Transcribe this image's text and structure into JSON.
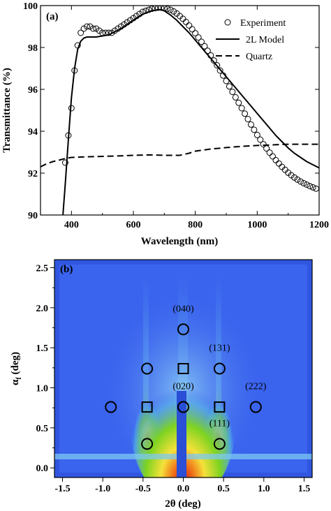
{
  "colors": {
    "line": "#000000",
    "map_bg": "#2a4fd6",
    "map_low": "#3a63ee",
    "map_mid": "#4fa8e8",
    "map_green": "#7ed321",
    "map_yellow": "#f5e13a",
    "map_orange": "#f07a1a",
    "map_red": "#d01818",
    "marker": "#000000"
  },
  "chart_data": [
    {
      "type": "line",
      "panel_label": "(a)",
      "xlabel": "Wavelength (nm)",
      "ylabel": "Transmittance (%)",
      "xlim": [
        300,
        1200
      ],
      "ylim": [
        90,
        100
      ],
      "x_ticks": [
        400,
        600,
        800,
        1000,
        1200
      ],
      "x_tick_labels": [
        "400",
        "600",
        "800",
        "1000",
        "1200"
      ],
      "y_ticks": [
        90,
        92,
        94,
        96,
        98,
        100
      ],
      "y_tick_labels": [
        "90",
        "92",
        "94",
        "96",
        "98",
        "100"
      ],
      "grid": false,
      "legend_position": "top-right",
      "series": [
        {
          "name": "Experiment",
          "style": "open-circles",
          "x": [
            380,
            390,
            400,
            410,
            420,
            430,
            440,
            450,
            460,
            470,
            480,
            490,
            500,
            510,
            520,
            530,
            540,
            550,
            560,
            570,
            580,
            590,
            600,
            610,
            620,
            630,
            640,
            650,
            660,
            670,
            680,
            690,
            700,
            710,
            720,
            730,
            740,
            750,
            760,
            770,
            780,
            790,
            800,
            810,
            820,
            830,
            840,
            850,
            860,
            870,
            880,
            890,
            900,
            910,
            920,
            930,
            940,
            950,
            960,
            970,
            980,
            990,
            1000,
            1010,
            1020,
            1030,
            1040,
            1050,
            1060,
            1070,
            1080,
            1090,
            1100,
            1110,
            1120,
            1130,
            1140,
            1150,
            1160,
            1170,
            1180,
            1190
          ],
          "y": [
            92.5,
            93.8,
            95.1,
            96.9,
            98.1,
            98.7,
            98.9,
            99.0,
            99.0,
            98.9,
            98.9,
            98.8,
            98.7,
            98.7,
            98.7,
            98.7,
            98.8,
            98.9,
            99.0,
            99.1,
            99.2,
            99.3,
            99.4,
            99.5,
            99.6,
            99.7,
            99.75,
            99.8,
            99.85,
            99.88,
            99.9,
            99.9,
            99.88,
            99.85,
            99.8,
            99.72,
            99.62,
            99.5,
            99.37,
            99.22,
            99.05,
            98.87,
            98.68,
            98.48,
            98.27,
            98.06,
            97.84,
            97.62,
            97.38,
            97.15,
            96.9,
            96.66,
            96.4,
            96.14,
            95.88,
            95.62,
            95.36,
            95.1,
            94.84,
            94.58,
            94.32,
            94.07,
            93.82,
            93.6,
            93.38,
            93.18,
            92.98,
            92.8,
            92.62,
            92.46,
            92.3,
            92.16,
            92.02,
            91.9,
            91.79,
            91.69,
            91.6,
            91.52,
            91.45,
            91.38,
            91.32,
            91.26
          ]
        },
        {
          "name": "2L Model",
          "style": "solid",
          "x": [
            370,
            380,
            390,
            400,
            410,
            420,
            430,
            440,
            450,
            460,
            480,
            500,
            520,
            540,
            560,
            580,
            600,
            620,
            640,
            660,
            680,
            690,
            700,
            720,
            740,
            760,
            780,
            800,
            820,
            840,
            860,
            880,
            900,
            920,
            940,
            960,
            980,
            1000,
            1020,
            1040,
            1060,
            1080,
            1100,
            1120,
            1140,
            1160,
            1180,
            1200
          ],
          "y": [
            89.5,
            91.5,
            93.6,
            95.6,
            97.0,
            97.9,
            98.3,
            98.45,
            98.5,
            98.5,
            98.5,
            98.55,
            98.6,
            98.75,
            98.9,
            99.1,
            99.3,
            99.5,
            99.65,
            99.75,
            99.8,
            99.8,
            99.75,
            99.55,
            99.3,
            99.0,
            98.7,
            98.35,
            98.0,
            97.65,
            97.3,
            96.95,
            96.6,
            96.25,
            95.9,
            95.55,
            95.2,
            94.85,
            94.5,
            94.15,
            93.8,
            93.5,
            93.2,
            92.95,
            92.75,
            92.55,
            92.4,
            92.25
          ]
        },
        {
          "name": "Quartz",
          "style": "dashed",
          "x": [
            300,
            320,
            340,
            360,
            380,
            400,
            450,
            500,
            550,
            600,
            650,
            700,
            750,
            780,
            800,
            850,
            900,
            950,
            1000,
            1050,
            1100,
            1150,
            1200
          ],
          "y": [
            92.3,
            92.45,
            92.55,
            92.62,
            92.7,
            92.75,
            92.78,
            92.8,
            92.82,
            92.85,
            92.87,
            92.85,
            92.85,
            92.95,
            93.05,
            93.15,
            93.22,
            93.28,
            93.32,
            93.35,
            93.38,
            93.38,
            93.38
          ]
        }
      ]
    },
    {
      "type": "heatmap",
      "panel_label": "(b)",
      "xlabel": "2θ (deg)",
      "ylabel": "α",
      "ylabel_subscript": "f",
      "ylabel_unit": " (deg)",
      "xlim": [
        -1.6,
        1.6
      ],
      "ylim": [
        -0.12,
        2.6
      ],
      "x_ticks": [
        -1.5,
        -1.0,
        -0.5,
        0.0,
        0.5,
        1.0,
        1.5
      ],
      "x_tick_labels": [
        "-1.5",
        "-1.0",
        "-0.5",
        "0.0",
        "0.5",
        "1.0",
        "1.5"
      ],
      "y_ticks": [
        0.0,
        0.5,
        1.0,
        1.5,
        2.0,
        2.5
      ],
      "y_tick_labels": [
        "0.0",
        "0.5",
        "1.0",
        "1.5",
        "2.0",
        "2.5"
      ],
      "grid": false,
      "circles": [
        {
          "x": -0.9,
          "y": 0.76
        },
        {
          "x": -0.45,
          "y": 1.24
        },
        {
          "x": -0.45,
          "y": 0.3
        },
        {
          "x": 0.0,
          "y": 1.73
        },
        {
          "x": 0.0,
          "y": 0.76
        },
        {
          "x": 0.45,
          "y": 1.24
        },
        {
          "x": 0.45,
          "y": 0.3
        },
        {
          "x": 0.9,
          "y": 0.76
        }
      ],
      "squares": [
        {
          "x": -0.45,
          "y": 0.76
        },
        {
          "x": 0.0,
          "y": 1.24
        },
        {
          "x": 0.45,
          "y": 0.76
        }
      ],
      "labels": [
        {
          "text": "(040)",
          "x": 0.0,
          "y": 1.97
        },
        {
          "text": "(131)",
          "x": 0.45,
          "y": 1.48
        },
        {
          "text": "(020)",
          "x": 0.0,
          "y": 1.0
        },
        {
          "text": "(222)",
          "x": 0.9,
          "y": 1.0
        },
        {
          "text": "(111)",
          "x": 0.45,
          "y": 0.54
        }
      ]
    }
  ]
}
